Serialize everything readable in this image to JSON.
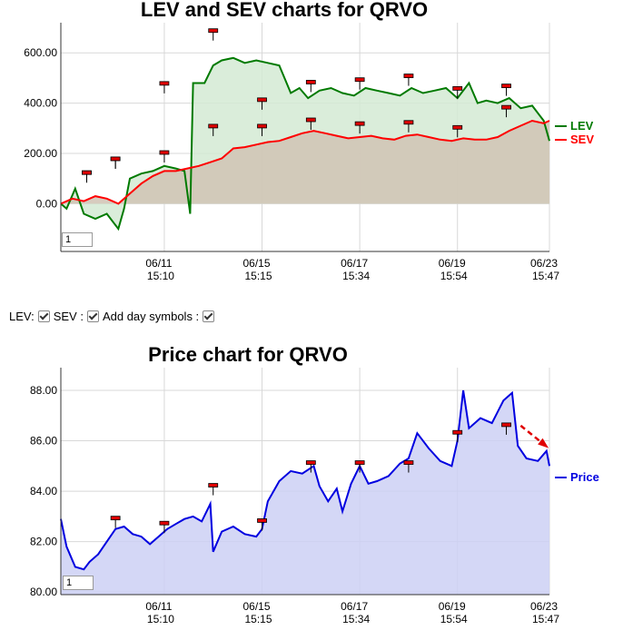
{
  "chart_data": [
    {
      "type": "area",
      "title": "LEV and SEV charts for QRVO",
      "x_tick_labels": [
        {
          "date": "06/11",
          "time": "15:10"
        },
        {
          "date": "06/15",
          "time": "15:15"
        },
        {
          "date": "06/17",
          "time": "15:34"
        },
        {
          "date": "06/19",
          "time": "15:54"
        },
        {
          "date": "06/23",
          "time": "15:47"
        }
      ],
      "y_tick_labels": [
        "0.00",
        "200.00",
        "400.00",
        "600.00"
      ],
      "ylim": [
        -190,
        720
      ],
      "grid": true,
      "legend_position": "right",
      "series": [
        {
          "name": "LEV",
          "color": "#007a00",
          "fill": "#d4ead4",
          "points": [
            [
              0,
              0
            ],
            [
              0.2,
              -20
            ],
            [
              0.5,
              60
            ],
            [
              0.8,
              -40
            ],
            [
              1.2,
              -60
            ],
            [
              1.6,
              -40
            ],
            [
              2.0,
              -100
            ],
            [
              2.2,
              -20
            ],
            [
              2.4,
              100
            ],
            [
              2.8,
              120
            ],
            [
              3.2,
              130
            ],
            [
              3.6,
              150
            ],
            [
              4.0,
              140
            ],
            [
              4.3,
              130
            ],
            [
              4.5,
              -40
            ],
            [
              4.6,
              480
            ],
            [
              5.0,
              480
            ],
            [
              5.3,
              550
            ],
            [
              5.6,
              570
            ],
            [
              6.0,
              580
            ],
            [
              6.4,
              560
            ],
            [
              6.8,
              570
            ],
            [
              7.2,
              560
            ],
            [
              7.6,
              550
            ],
            [
              8.0,
              440
            ],
            [
              8.3,
              460
            ],
            [
              8.6,
              420
            ],
            [
              9.0,
              450
            ],
            [
              9.4,
              460
            ],
            [
              9.8,
              440
            ],
            [
              10.2,
              430
            ],
            [
              10.6,
              460
            ],
            [
              11.0,
              450
            ],
            [
              11.4,
              440
            ],
            [
              11.8,
              430
            ],
            [
              12.2,
              460
            ],
            [
              12.6,
              440
            ],
            [
              13.0,
              450
            ],
            [
              13.4,
              460
            ],
            [
              13.8,
              420
            ],
            [
              14.2,
              480
            ],
            [
              14.5,
              400
            ],
            [
              14.8,
              410
            ],
            [
              15.2,
              400
            ],
            [
              15.6,
              420
            ],
            [
              16.0,
              380
            ],
            [
              16.4,
              390
            ],
            [
              16.8,
              330
            ],
            [
              17.0,
              250
            ]
          ]
        },
        {
          "name": "SEV",
          "color": "#ff0000",
          "fill": "#d0c3b4",
          "points": [
            [
              0,
              0
            ],
            [
              0.4,
              20
            ],
            [
              0.8,
              10
            ],
            [
              1.2,
              30
            ],
            [
              1.6,
              20
            ],
            [
              2.0,
              0
            ],
            [
              2.4,
              40
            ],
            [
              2.8,
              80
            ],
            [
              3.2,
              110
            ],
            [
              3.6,
              130
            ],
            [
              4.0,
              130
            ],
            [
              4.4,
              140
            ],
            [
              4.8,
              150
            ],
            [
              5.2,
              165
            ],
            [
              5.6,
              180
            ],
            [
              6.0,
              220
            ],
            [
              6.4,
              225
            ],
            [
              6.8,
              235
            ],
            [
              7.2,
              245
            ],
            [
              7.6,
              250
            ],
            [
              8.0,
              265
            ],
            [
              8.4,
              280
            ],
            [
              8.8,
              290
            ],
            [
              9.2,
              280
            ],
            [
              9.6,
              270
            ],
            [
              10.0,
              260
            ],
            [
              10.4,
              265
            ],
            [
              10.8,
              270
            ],
            [
              11.2,
              260
            ],
            [
              11.6,
              255
            ],
            [
              12.0,
              270
            ],
            [
              12.4,
              275
            ],
            [
              12.8,
              265
            ],
            [
              13.2,
              255
            ],
            [
              13.6,
              250
            ],
            [
              14.0,
              260
            ],
            [
              14.4,
              255
            ],
            [
              14.8,
              255
            ],
            [
              15.2,
              265
            ],
            [
              15.6,
              290
            ],
            [
              16.0,
              310
            ],
            [
              16.4,
              330
            ],
            [
              16.8,
              320
            ],
            [
              17.0,
              330
            ]
          ]
        }
      ],
      "x_tick_positions": [
        3.6,
        7.0,
        10.4,
        13.8,
        17.0
      ],
      "x_range": [
        0,
        17.0
      ],
      "day_symbol_x": [
        0.9,
        1.9,
        3.6,
        5.3,
        7.0,
        8.7,
        10.4,
        12.1,
        13.8,
        15.5
      ],
      "day_symbol_lev_y": [
        120,
        175,
        475,
        685,
        410,
        480,
        490,
        505,
        455,
        465
      ],
      "day_symbol_sev_y": [
        120,
        175,
        200,
        305,
        305,
        330,
        315,
        320,
        300,
        380
      ]
    },
    {
      "type": "area",
      "title": "Price chart for QRVO",
      "x_tick_labels": [
        {
          "date": "06/11",
          "time": "15:10"
        },
        {
          "date": "06/15",
          "time": "15:15"
        },
        {
          "date": "06/17",
          "time": "15:34"
        },
        {
          "date": "06/19",
          "time": "15:54"
        },
        {
          "date": "06/23",
          "time": "15:47"
        }
      ],
      "y_tick_labels": [
        "80.00",
        "82.00",
        "84.00",
        "86.00",
        "88.00"
      ],
      "ylim": [
        79.9,
        88.9
      ],
      "grid": true,
      "legend_position": "right",
      "series": [
        {
          "name": "Price",
          "color": "#0000e0",
          "fill": "#cdd0f5",
          "points": [
            [
              0,
              82.9
            ],
            [
              0.2,
              81.8
            ],
            [
              0.5,
              81.0
            ],
            [
              0.8,
              80.9
            ],
            [
              1.0,
              81.2
            ],
            [
              1.3,
              81.5
            ],
            [
              1.6,
              82.0
            ],
            [
              1.9,
              82.5
            ],
            [
              2.2,
              82.6
            ],
            [
              2.5,
              82.3
            ],
            [
              2.8,
              82.2
            ],
            [
              3.1,
              81.9
            ],
            [
              3.4,
              82.2
            ],
            [
              3.7,
              82.5
            ],
            [
              4.0,
              82.7
            ],
            [
              4.3,
              82.9
            ],
            [
              4.6,
              83.0
            ],
            [
              4.9,
              82.8
            ],
            [
              5.2,
              83.5
            ],
            [
              5.3,
              81.6
            ],
            [
              5.6,
              82.4
            ],
            [
              6.0,
              82.6
            ],
            [
              6.4,
              82.3
            ],
            [
              6.8,
              82.2
            ],
            [
              7.0,
              82.5
            ],
            [
              7.2,
              83.6
            ],
            [
              7.6,
              84.4
            ],
            [
              8.0,
              84.8
            ],
            [
              8.4,
              84.7
            ],
            [
              8.8,
              85.0
            ],
            [
              9.0,
              84.2
            ],
            [
              9.3,
              83.6
            ],
            [
              9.6,
              84.1
            ],
            [
              9.8,
              83.2
            ],
            [
              10.1,
              84.3
            ],
            [
              10.4,
              85.0
            ],
            [
              10.7,
              84.3
            ],
            [
              11.0,
              84.4
            ],
            [
              11.4,
              84.6
            ],
            [
              11.8,
              85.1
            ],
            [
              12.1,
              85.3
            ],
            [
              12.4,
              86.3
            ],
            [
              12.8,
              85.7
            ],
            [
              13.2,
              85.2
            ],
            [
              13.6,
              85.0
            ],
            [
              13.8,
              86.0
            ],
            [
              14.0,
              88.0
            ],
            [
              14.2,
              86.5
            ],
            [
              14.6,
              86.9
            ],
            [
              15.0,
              86.7
            ],
            [
              15.4,
              87.6
            ],
            [
              15.7,
              87.9
            ],
            [
              15.9,
              85.8
            ],
            [
              16.2,
              85.3
            ],
            [
              16.6,
              85.2
            ],
            [
              16.9,
              85.6
            ],
            [
              17.0,
              85.0
            ]
          ]
        }
      ],
      "x_tick_positions": [
        3.6,
        7.0,
        10.4,
        13.8,
        17.0
      ],
      "x_range": [
        0,
        17.0
      ],
      "day_symbol_x": [
        1.9,
        3.6,
        5.3,
        7.0,
        8.7,
        10.4,
        12.1,
        13.8,
        15.5
      ],
      "day_symbol_y": [
        82.9,
        82.7,
        84.2,
        82.8,
        85.1,
        85.1,
        85.1,
        86.3,
        86.6
      ],
      "arrow": {
        "from": [
          16.0,
          86.6
        ],
        "to": [
          17.0,
          85.8
        ],
        "color": "#e00000"
      }
    }
  ],
  "controls": {
    "lev_label": "LEV:",
    "sev_label": "SEV :",
    "day_symbols_label": "Add day symbols :"
  },
  "range_input_value": "1"
}
